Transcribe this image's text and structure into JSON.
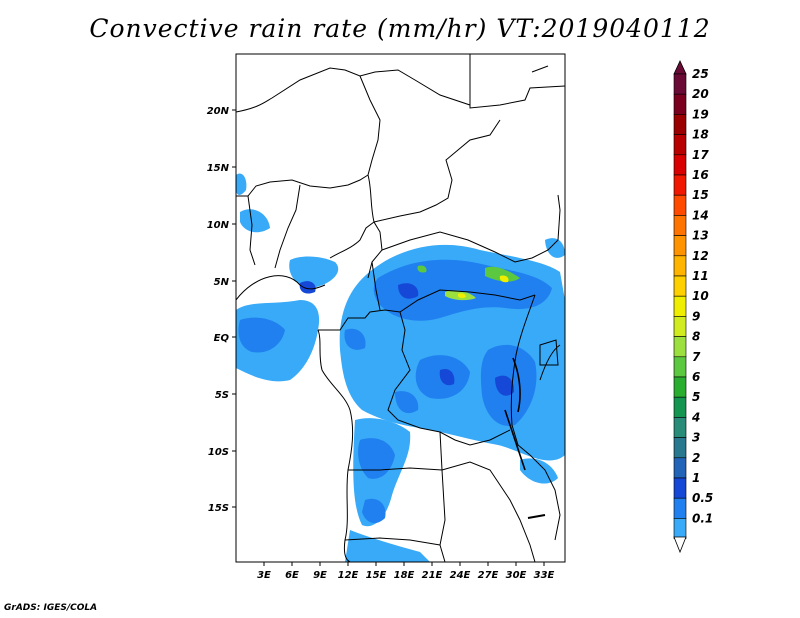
{
  "title": "Convective rain rate (mm/hr) VT:2019040112",
  "credit": "GrADS: IGES/COLA",
  "map": {
    "lon_labels": [
      "3E",
      "6E",
      "9E",
      "12E",
      "15E",
      "18E",
      "21E",
      "24E",
      "27E",
      "30E",
      "33E"
    ],
    "lat_labels": [
      "20N",
      "15N",
      "10N",
      "5N",
      "EQ",
      "5S",
      "10S",
      "15S"
    ]
  },
  "colorbar": {
    "levels": [
      "25",
      "20",
      "19",
      "18",
      "17",
      "16",
      "15",
      "14",
      "13",
      "12",
      "11",
      "10",
      "9",
      "8",
      "7",
      "6",
      "5",
      "4",
      "3",
      "2",
      "1",
      "0.5",
      "0.1"
    ],
    "colors": [
      "#6a0b36",
      "#7a0020",
      "#9b0000",
      "#b80000",
      "#d80000",
      "#f01800",
      "#ff4a00",
      "#ff7400",
      "#ff9400",
      "#ffb400",
      "#ffd000",
      "#f0ee00",
      "#d0ec20",
      "#9ce040",
      "#5cc840",
      "#2aae30",
      "#159650",
      "#288c78",
      "#287890",
      "#2264b8",
      "#1648d8",
      "#2080f0",
      "#38aaf8"
    ],
    "top_color": "#6a0b36",
    "bottom_color": "#ffffff"
  }
}
